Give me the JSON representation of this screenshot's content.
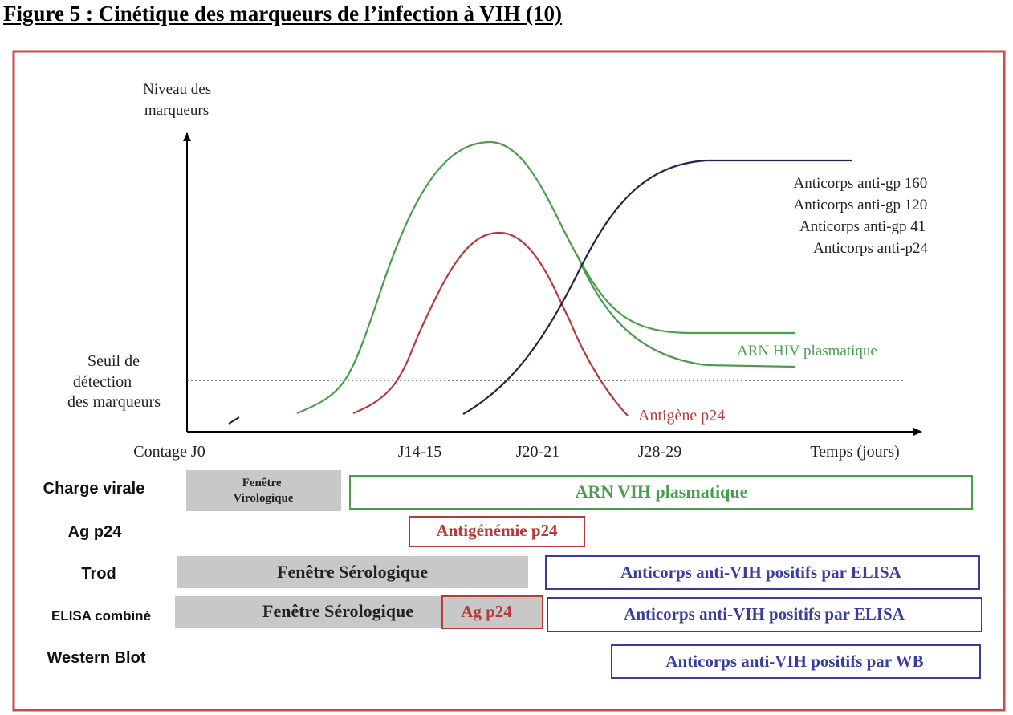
{
  "figure_title": "Figure 5 : Cinétique des marqueurs de l’infection à VIH (10)",
  "axes": {
    "y_label": [
      "Niveau des",
      "marqueurs"
    ],
    "x_label": "Temps (jours)",
    "threshold_label": [
      "Seuil de",
      "détection",
      "des marqueurs"
    ],
    "x_ticks": [
      "Contage J0",
      "J14-15",
      "J20-21",
      "J28-29"
    ]
  },
  "curves": {
    "antibodies": [
      "Anticorps anti-gp 160",
      "Anticorps anti-gp 120",
      "Anticorps anti-gp 41",
      "Anticorps anti-p24"
    ],
    "rna": "ARN HIV plasmatique",
    "p24": "Antigène p24"
  },
  "rows": {
    "charge_virale": {
      "label": "Charge virale",
      "window": [
        "Fenêtre",
        "Virologique"
      ],
      "result": "ARN VIH plasmatique"
    },
    "ag_p24": {
      "label": "Ag p24",
      "result": "Antigénémie p24"
    },
    "trod": {
      "label": "Trod",
      "window": "Fenêtre Sérologique",
      "result": "Anticorps anti-VIH positifs par ELISA"
    },
    "elisa": {
      "label": "ELISA combiné",
      "window": "Fenêtre Sérologique",
      "ag": "Ag p24",
      "result": "Anticorps anti-VIH positifs par ELISA"
    },
    "wb": {
      "label": "Western Blot",
      "result": "Anticorps anti-VIH positifs par WB"
    }
  },
  "colors": {
    "frame": "#d04848",
    "green": "#4a9c4f",
    "red": "#b53a3a",
    "navy": "#23244a",
    "blue": "#3a3d9c",
    "gray": "#c8c8c8"
  }
}
